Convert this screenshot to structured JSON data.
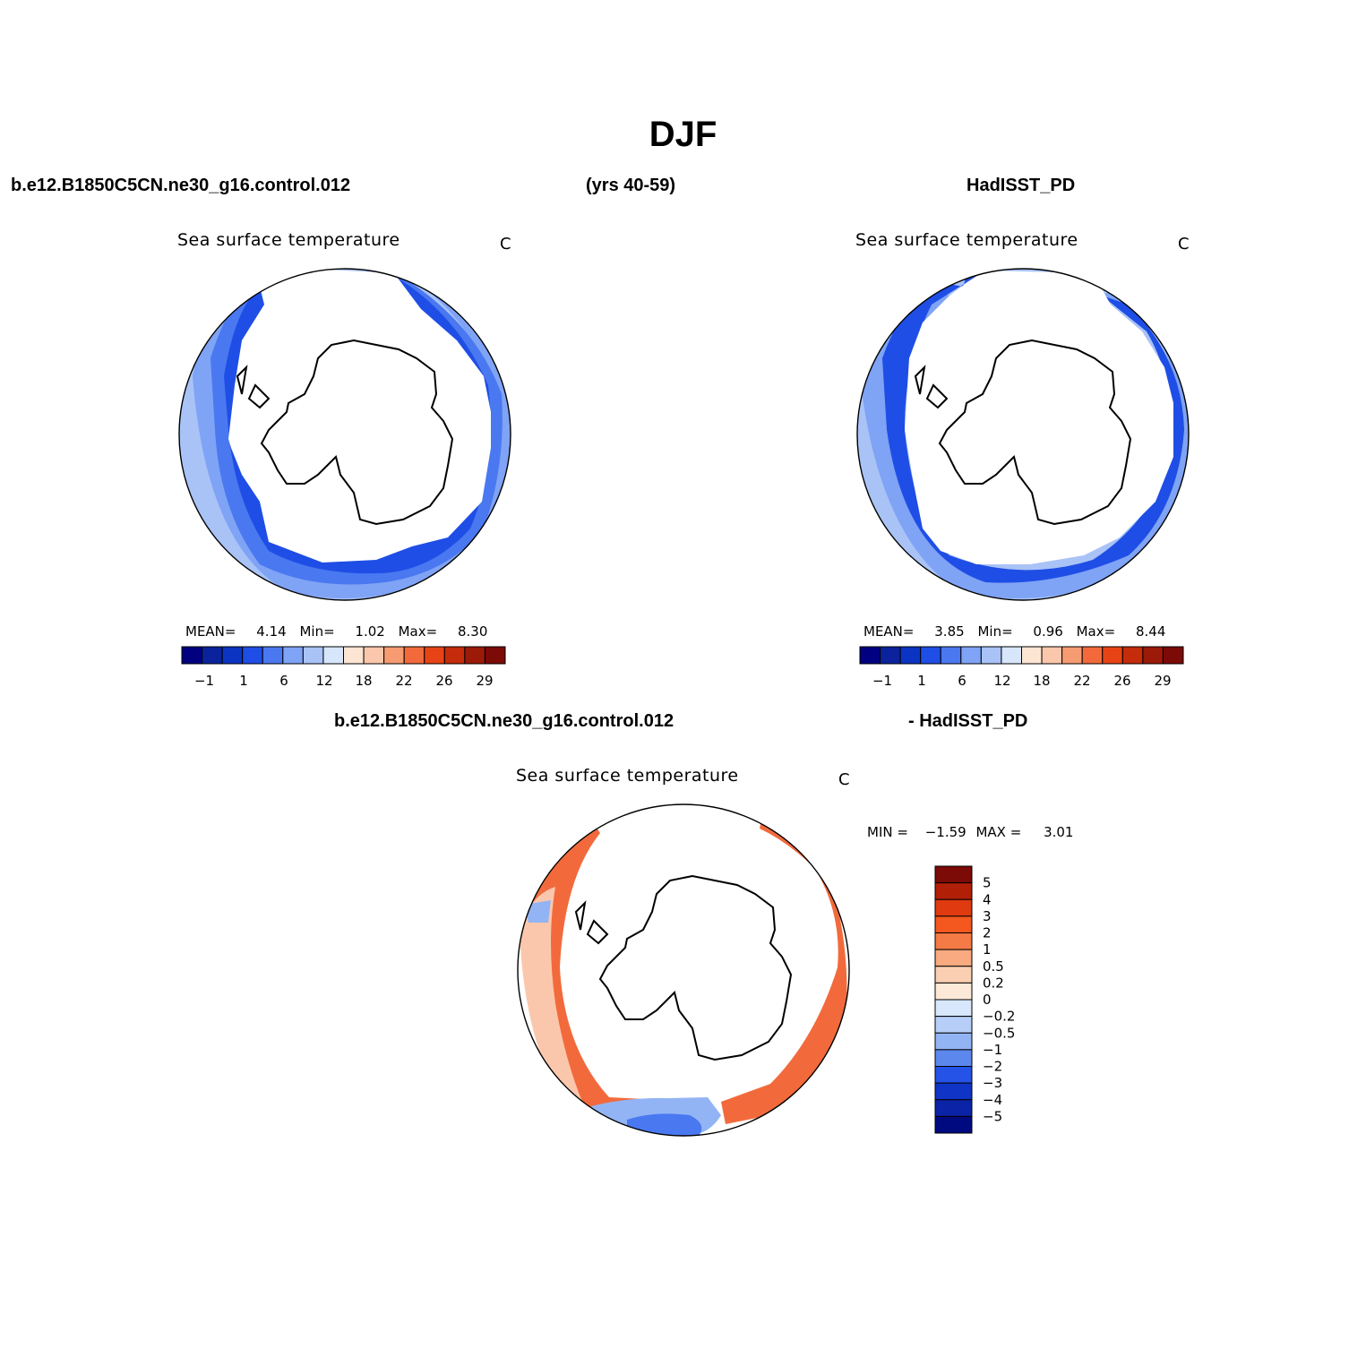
{
  "title": "DJF",
  "header": {
    "case": "b.e12.B1850C5CN.ne30_g16.control.012",
    "years": "(yrs 40-59)",
    "obs": "HadISST_PD"
  },
  "diff_header": {
    "case": "b.e12.B1850C5CN.ne30_g16.control.012",
    "obs": "- HadISST_PD"
  },
  "panels": [
    {
      "name": "model",
      "subtitle": "Sea surface temperature",
      "units": "C",
      "stats": {
        "mean_label": "MEAN=",
        "mean": "4.14",
        "min_label": "Min=",
        "min": "1.02",
        "max_label": "Max=",
        "max": "8.30"
      }
    },
    {
      "name": "obs",
      "subtitle": "Sea surface temperature",
      "units": "C",
      "stats": {
        "mean_label": "MEAN=",
        "mean": "3.85",
        "min_label": "Min=",
        "min": "0.96",
        "max_label": "Max=",
        "max": "8.44"
      }
    },
    {
      "name": "difference",
      "subtitle": "Sea surface temperature",
      "units": "C",
      "stats": {
        "min_label": "MIN =",
        "min": "−1.59",
        "max_label": "MAX =",
        "max": "3.01"
      }
    }
  ],
  "colorbar_abs": {
    "colors": [
      "#000080",
      "#0a239c",
      "#0b34c2",
      "#1f4ee6",
      "#4a78f0",
      "#7fa3f5",
      "#a9c3f7",
      "#d7e6fb",
      "#fde5d3",
      "#fbc7ac",
      "#f79c72",
      "#f26a3c",
      "#e84316",
      "#c42c0c",
      "#9b1a08",
      "#7c0a06"
    ],
    "tick_labels": [
      "−1",
      "1",
      "6",
      "12",
      "18",
      "22",
      "26",
      "29"
    ]
  },
  "colorbar_diff": {
    "colors": [
      "#7c0a06",
      "#b21f07",
      "#e03a10",
      "#f4581f",
      "#f47a46",
      "#f9aa80",
      "#fbcfb2",
      "#fde9d7",
      "#d8e7fb",
      "#b7cff8",
      "#93b4f4",
      "#5c88ee",
      "#2553e8",
      "#1034c6",
      "#0b23a6",
      "#000a80"
    ],
    "tick_labels": [
      "5",
      "4",
      "3",
      "2",
      "1",
      "0.5",
      "0.2",
      "0",
      "−0.2",
      "−0.5",
      "−1",
      "−2",
      "−3",
      "−4",
      "−5"
    ]
  },
  "map_colors": {
    "outer": "#a9c3f7",
    "mid": "#7fa3f5",
    "inner": "#4a78f0",
    "edge": "#1f4ee6",
    "diff_warm": "#f26a3c",
    "diff_light": "#fbc7ac",
    "diff_cool": "#93b4f4",
    "diff_blue": "#4a78f0"
  }
}
